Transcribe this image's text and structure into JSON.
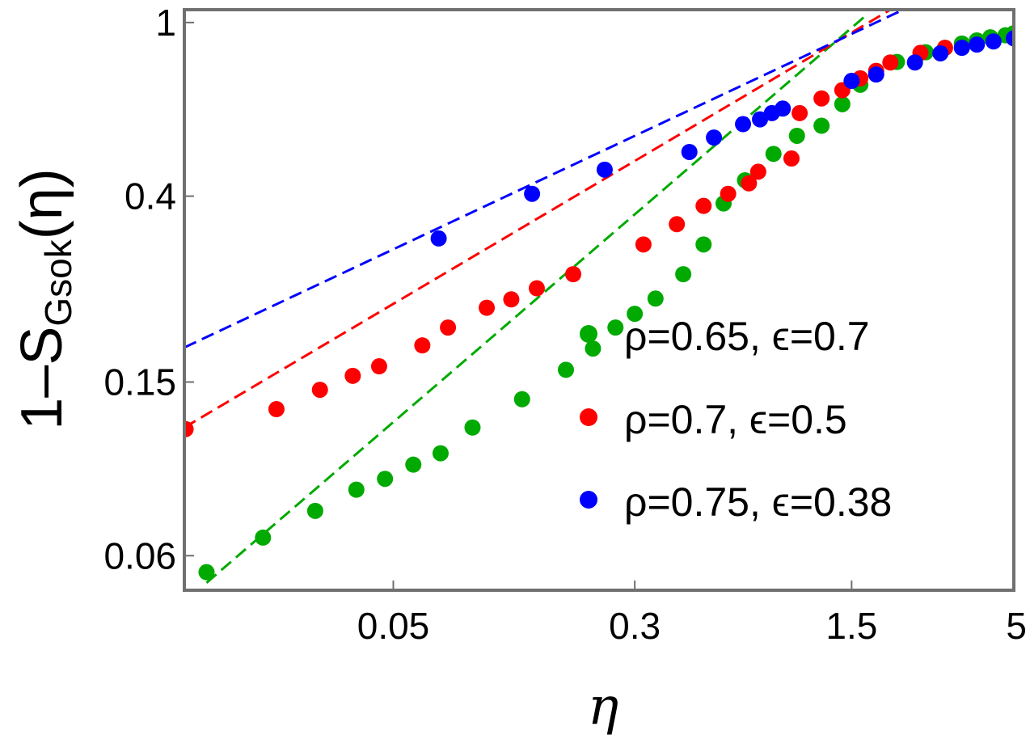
{
  "chart_data": {
    "type": "scatter",
    "title": "",
    "scale": {
      "x": "log",
      "y": "log"
    },
    "xlabel": "η",
    "ylabel": {
      "prefix": "1–S",
      "subscript": "Gsok",
      "suffix": "(η)"
    },
    "xlim": [
      0.0106,
      5.0
    ],
    "ylim": [
      0.05,
      1.07
    ],
    "xticks": [
      0.05,
      0.3,
      1.5,
      5
    ],
    "xtick_labels": [
      "0.05",
      "0.3",
      "1.5",
      "5"
    ],
    "yticks": [
      0.06,
      0.15,
      0.4,
      1
    ],
    "ytick_labels": [
      "0.06",
      "0.15",
      "0.4",
      "1"
    ],
    "legend_position": "right",
    "series": [
      {
        "name": "ρ=0.65, ϵ=0.7",
        "color": "#00aa00",
        "points": [
          [
            0.0125,
            0.055
          ],
          [
            0.019,
            0.066
          ],
          [
            0.028,
            0.076
          ],
          [
            0.038,
            0.085
          ],
          [
            0.047,
            0.09
          ],
          [
            0.058,
            0.097
          ],
          [
            0.071,
            0.103
          ],
          [
            0.09,
            0.118
          ],
          [
            0.13,
            0.137
          ],
          [
            0.18,
            0.16
          ],
          [
            0.22,
            0.179
          ],
          [
            0.26,
            0.2
          ],
          [
            0.3,
            0.215
          ],
          [
            0.35,
            0.233
          ],
          [
            0.43,
            0.265
          ],
          [
            0.5,
            0.31
          ],
          [
            0.58,
            0.385
          ],
          [
            0.68,
            0.435
          ],
          [
            0.84,
            0.5
          ],
          [
            1.0,
            0.55
          ],
          [
            1.2,
            0.58
          ],
          [
            1.4,
            0.65
          ],
          [
            1.6,
            0.72
          ],
          [
            2.1,
            0.812
          ],
          [
            2.6,
            0.855
          ],
          [
            3.0,
            0.875
          ],
          [
            3.4,
            0.895
          ],
          [
            3.8,
            0.91
          ],
          [
            4.2,
            0.925
          ],
          [
            4.7,
            0.935
          ],
          [
            5.0,
            0.945
          ]
        ],
        "fit": {
          "from": [
            0.0125,
            0.052
          ],
          "to": [
            1.7,
            1.05
          ]
        }
      },
      {
        "name": "ρ=0.7, ϵ=0.5",
        "color": "#ff0000",
        "points": [
          [
            0.0107,
            0.117
          ],
          [
            0.021,
            0.13
          ],
          [
            0.029,
            0.144
          ],
          [
            0.037,
            0.155
          ],
          [
            0.045,
            0.163
          ],
          [
            0.062,
            0.182
          ],
          [
            0.075,
            0.2
          ],
          [
            0.1,
            0.222
          ],
          [
            0.12,
            0.232
          ],
          [
            0.145,
            0.246
          ],
          [
            0.19,
            0.265
          ],
          [
            0.32,
            0.31
          ],
          [
            0.41,
            0.345
          ],
          [
            0.5,
            0.38
          ],
          [
            0.6,
            0.405
          ],
          [
            0.7,
            0.428
          ],
          [
            0.75,
            0.455
          ],
          [
            0.96,
            0.488
          ],
          [
            1.02,
            0.62
          ],
          [
            1.2,
            0.67
          ],
          [
            1.4,
            0.7
          ],
          [
            1.6,
            0.745
          ],
          [
            1.8,
            0.775
          ],
          [
            2.0,
            0.81
          ],
          [
            2.5,
            0.852
          ],
          [
            3.0,
            0.875
          ]
        ],
        "fit": {
          "from": [
            0.0106,
            0.118
          ],
          "to": [
            2.0,
            1.07
          ]
        }
      },
      {
        "name": "ρ=0.75, ϵ=0.38",
        "color": "#0000ff",
        "points": [
          [
            0.07,
            0.32
          ],
          [
            0.14,
            0.405
          ],
          [
            0.24,
            0.46
          ],
          [
            0.45,
            0.505
          ],
          [
            0.54,
            0.545
          ],
          [
            0.67,
            0.585
          ],
          [
            0.76,
            0.6
          ],
          [
            0.83,
            0.62
          ],
          [
            0.9,
            0.635
          ],
          [
            1.5,
            0.735
          ],
          [
            1.8,
            0.76
          ],
          [
            2.4,
            0.81
          ],
          [
            2.9,
            0.85
          ],
          [
            3.4,
            0.875
          ],
          [
            3.8,
            0.89
          ],
          [
            4.3,
            0.905
          ],
          [
            5.0,
            0.92
          ]
        ],
        "fit": {
          "from": [
            0.0106,
            0.18
          ],
          "to": [
            2.2,
            1.07
          ]
        }
      }
    ]
  }
}
